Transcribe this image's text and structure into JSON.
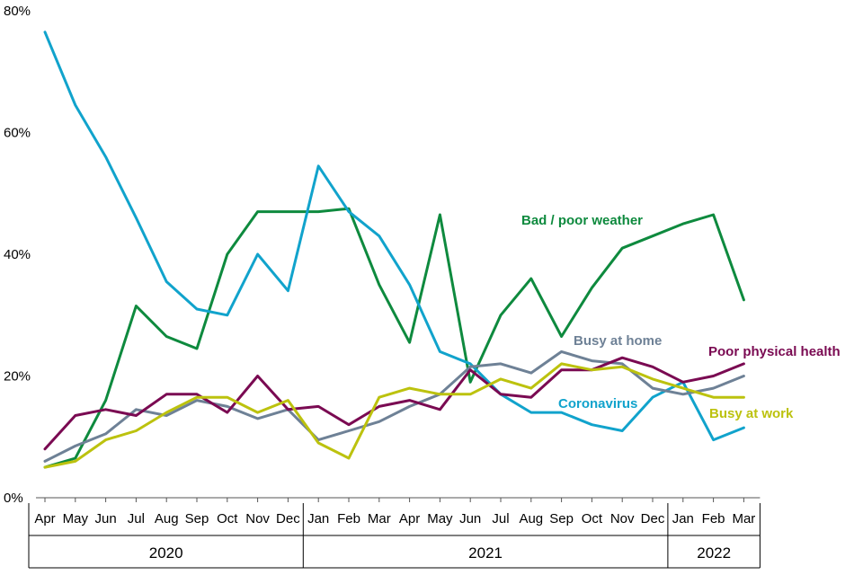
{
  "chart_data": {
    "type": "line",
    "title": "",
    "xlabel": "",
    "ylabel": "",
    "ylim": [
      0,
      80
    ],
    "y_ticks": [
      "0%",
      "20%",
      "40%",
      "60%",
      "80%"
    ],
    "y_tick_values": [
      0,
      20,
      40,
      60,
      80
    ],
    "categories": [
      "Apr",
      "May",
      "Jun",
      "Jul",
      "Aug",
      "Sep",
      "Oct",
      "Nov",
      "Dec",
      "Jan",
      "Feb",
      "Mar",
      "Apr",
      "May",
      "Jun",
      "Jul",
      "Aug",
      "Sep",
      "Oct",
      "Nov",
      "Dec",
      "Jan",
      "Feb",
      "Mar"
    ],
    "year_groups": [
      {
        "label": "2020",
        "start": 0,
        "end": 8
      },
      {
        "label": "2021",
        "start": 9,
        "end": 20
      },
      {
        "label": "2022",
        "start": 21,
        "end": 23
      }
    ],
    "grid": false,
    "legend": "inline labels",
    "series": [
      {
        "name": "Bad / poor weather",
        "color": "#0e8a3e",
        "values": [
          5,
          6.5,
          16,
          31.5,
          26.5,
          24.5,
          40,
          47,
          47,
          47,
          47.5,
          35,
          25.5,
          46.5,
          19,
          30,
          36,
          26.5,
          34.5,
          41,
          43,
          45,
          46.5,
          32.5
        ]
      },
      {
        "name": "Coronavirus",
        "color": "#11a3cc",
        "values": [
          76.5,
          64.5,
          56,
          46,
          35.5,
          31,
          30,
          40,
          34,
          54.5,
          47,
          43,
          35,
          24,
          22,
          17,
          14,
          14,
          12,
          11,
          16.5,
          19,
          9.5,
          11.5
        ]
      },
      {
        "name": "Busy at home",
        "color": "#6e8196",
        "values": [
          6,
          8.5,
          10.5,
          14.5,
          13.5,
          16,
          15,
          13,
          14.5,
          9.5,
          11,
          12.5,
          15,
          17,
          21.5,
          22,
          20.5,
          24,
          22.5,
          22,
          18,
          17,
          18,
          20
        ]
      },
      {
        "name": "Poor physical health",
        "color": "#7a0a52",
        "values": [
          8,
          13.5,
          14.5,
          13.5,
          17,
          17,
          14,
          20,
          14.5,
          15,
          12,
          15,
          16,
          14.5,
          21,
          17,
          16.5,
          21,
          21,
          23,
          21.5,
          19,
          20,
          22
        ]
      },
      {
        "name": "Busy at work",
        "color": "#bcc20e",
        "values": [
          5,
          6,
          9.5,
          11,
          14,
          16.5,
          16.5,
          14,
          16,
          9,
          6.5,
          16.5,
          18,
          17,
          17,
          19.5,
          18,
          22,
          21,
          21.5,
          19.5,
          18,
          16.5,
          16.5
        ]
      }
    ]
  }
}
